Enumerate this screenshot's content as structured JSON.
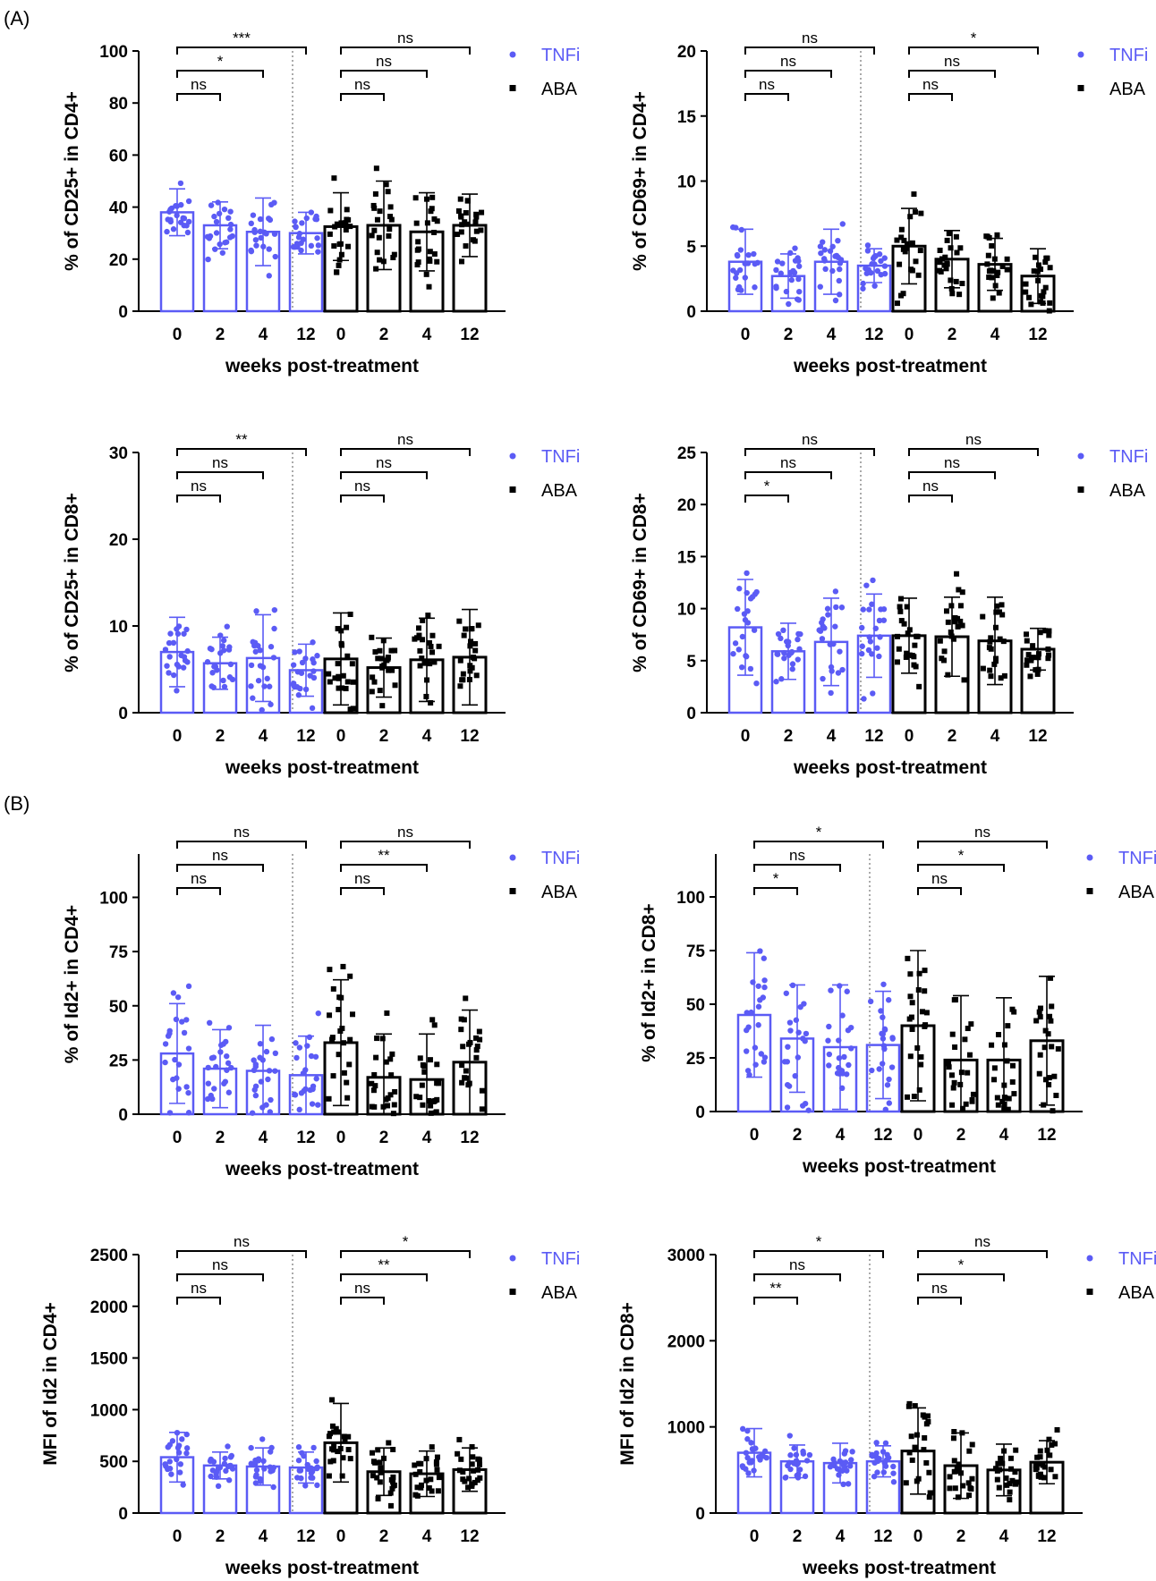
{
  "sections": [
    "(A)",
    "(B)"
  ],
  "xlabel": "weeks post-treatment",
  "legend": [
    {
      "name": "TNFi",
      "color": "#5b5bf5"
    },
    {
      "name": "ABA",
      "color": "#000000"
    }
  ],
  "chart_data": [
    {
      "type": "bar",
      "ylabel": "% of CD25+ in CD4+",
      "ylim": [
        0,
        100
      ],
      "ticks": [
        "0",
        "20",
        "40",
        "60",
        "80",
        "100"
      ],
      "categories": [
        "0",
        "2",
        "4",
        "12"
      ],
      "series": [
        {
          "name": "TNFi",
          "means": [
            38,
            33,
            30.5,
            30
          ],
          "sd": [
            9,
            9,
            13,
            8
          ]
        },
        {
          "name": "ABA",
          "means": [
            32.5,
            33,
            30.5,
            33
          ],
          "sd": [
            13,
            17,
            15,
            12
          ]
        }
      ],
      "sig": [
        [
          "ns",
          "*",
          "***"
        ],
        [
          "ns",
          "ns",
          "ns"
        ]
      ]
    },
    {
      "type": "bar",
      "ylabel": "% of CD69+ in CD4+",
      "ylim": [
        0,
        20
      ],
      "ticks": [
        "0",
        "5",
        "10",
        "15",
        "20"
      ],
      "categories": [
        "0",
        "2",
        "4",
        "12"
      ],
      "series": [
        {
          "name": "TNFi",
          "means": [
            3.8,
            2.7,
            3.8,
            3.5
          ],
          "sd": [
            2.5,
            1.7,
            2.5,
            1.3
          ]
        },
        {
          "name": "ABA",
          "means": [
            5,
            4,
            3.6,
            2.7
          ],
          "sd": [
            2.9,
            2.2,
            2,
            2.1
          ]
        }
      ],
      "sig": [
        [
          "ns",
          "ns",
          "ns"
        ],
        [
          "ns",
          "ns",
          "*"
        ]
      ]
    },
    {
      "type": "bar",
      "ylabel": "% of CD25+ in CD8+",
      "ylim": [
        0,
        30
      ],
      "ticks": [
        "0",
        "10",
        "20",
        "30"
      ],
      "categories": [
        "0",
        "2",
        "4",
        "12"
      ],
      "series": [
        {
          "name": "TNFi",
          "means": [
            7,
            5.7,
            6.3,
            4.9
          ],
          "sd": [
            4,
            3,
            5,
            3
          ]
        },
        {
          "name": "ABA",
          "means": [
            6.2,
            5.2,
            6.1,
            6.4
          ],
          "sd": [
            5.3,
            3.4,
            4.8,
            5.5
          ]
        }
      ],
      "sig": [
        [
          "ns",
          "ns",
          "**"
        ],
        [
          "ns",
          "ns",
          "ns"
        ]
      ]
    },
    {
      "type": "bar",
      "ylabel": "% of CD69+ in CD8+",
      "ylim": [
        0,
        25
      ],
      "ticks": [
        "0",
        "5",
        "10",
        "15",
        "20",
        "25"
      ],
      "categories": [
        "0",
        "2",
        "4",
        "12"
      ],
      "series": [
        {
          "name": "TNFi",
          "means": [
            8.2,
            5.9,
            6.8,
            7.4
          ],
          "sd": [
            4.6,
            2.7,
            4.2,
            4
          ]
        },
        {
          "name": "ABA",
          "means": [
            7.4,
            7.3,
            6.9,
            6.1
          ],
          "sd": [
            3.6,
            3.8,
            4.2,
            2
          ]
        }
      ],
      "sig": [
        [
          "*",
          "ns",
          "ns"
        ],
        [
          "ns",
          "ns",
          "ns"
        ]
      ]
    },
    {
      "type": "bar",
      "ylabel": "% of Id2+ in CD4+",
      "ylim": [
        0,
        120
      ],
      "ticks": [
        "0",
        "25",
        "50",
        "75",
        "100"
      ],
      "categories": [
        "0",
        "2",
        "4",
        "12"
      ],
      "series": [
        {
          "name": "TNFi",
          "means": [
            28,
            21,
            20,
            18
          ],
          "sd": [
            23,
            18,
            21,
            18
          ]
        },
        {
          "name": "ABA",
          "means": [
            33,
            17,
            16,
            24
          ],
          "sd": [
            29,
            20,
            21,
            24
          ]
        }
      ],
      "sig": [
        [
          "ns",
          "ns",
          "ns"
        ],
        [
          "ns",
          "**",
          "ns"
        ]
      ]
    },
    {
      "type": "bar",
      "ylabel": "% of Id2+ in CD8+",
      "ylim": [
        0,
        120
      ],
      "ticks": [
        "0",
        "25",
        "50",
        "75",
        "100"
      ],
      "categories": [
        "0",
        "2",
        "4",
        "12"
      ],
      "series": [
        {
          "name": "TNFi",
          "means": [
            45,
            34,
            30,
            31
          ],
          "sd": [
            29,
            25,
            29,
            25
          ]
        },
        {
          "name": "ABA",
          "means": [
            40,
            24,
            24,
            33
          ],
          "sd": [
            35,
            30,
            29,
            30
          ]
        }
      ],
      "sig": [
        [
          "*",
          "ns",
          "*"
        ],
        [
          "ns",
          "*",
          "ns"
        ]
      ]
    },
    {
      "type": "bar",
      "ylabel": "MFI of Id2 in CD4+",
      "ylim": [
        0,
        2500
      ],
      "ticks": [
        "0",
        "500",
        "1000",
        "1500",
        "2000",
        "2500"
      ],
      "categories": [
        "0",
        "2",
        "4",
        "12"
      ],
      "series": [
        {
          "name": "TNFi",
          "means": [
            540,
            460,
            450,
            440
          ],
          "sd": [
            240,
            130,
            180,
            150
          ]
        },
        {
          "name": "ABA",
          "means": [
            680,
            400,
            380,
            420
          ],
          "sd": [
            380,
            230,
            220,
            210
          ]
        }
      ],
      "sig": [
        [
          "ns",
          "ns",
          "ns"
        ],
        [
          "ns",
          "**",
          "*"
        ]
      ]
    },
    {
      "type": "bar",
      "ylabel": "MFI of Id2 in CD8+",
      "ylim": [
        0,
        3000
      ],
      "ticks": [
        "0",
        "1000",
        "2000",
        "3000"
      ],
      "categories": [
        "0",
        "2",
        "4",
        "12"
      ],
      "series": [
        {
          "name": "TNFi",
          "means": [
            700,
            600,
            580,
            600
          ],
          "sd": [
            280,
            190,
            230,
            180
          ]
        },
        {
          "name": "ABA",
          "means": [
            720,
            550,
            500,
            590
          ],
          "sd": [
            500,
            380,
            300,
            250
          ]
        }
      ],
      "sig": [
        [
          "**",
          "ns",
          "*"
        ],
        [
          "ns",
          "*",
          "ns"
        ]
      ]
    }
  ]
}
